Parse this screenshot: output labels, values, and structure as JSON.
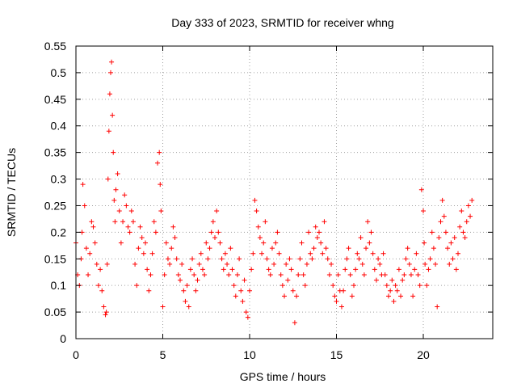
{
  "chart_data": {
    "type": "scatter",
    "title": "Day 333 of 2023, SRMTID for receiver whng",
    "xlabel": "GPS time / hours",
    "ylabel": "SRMTID / TECUs",
    "xlim": [
      0,
      24
    ],
    "ylim": [
      0,
      0.55
    ],
    "xticks": [
      0,
      5,
      10,
      15,
      20
    ],
    "xtick_labels": [
      "0",
      "5",
      "10",
      "15",
      "20"
    ],
    "yticks": [
      0,
      0.05,
      0.1,
      0.15,
      0.2,
      0.25,
      0.3,
      0.35,
      0.4,
      0.45,
      0.5,
      0.55
    ],
    "ytick_labels": [
      "0",
      "0.05",
      "0.1",
      "0.15",
      "0.2",
      "0.25",
      "0.3",
      "0.35",
      "0.4",
      "0.45",
      "0.5",
      "0.55"
    ],
    "grid": true,
    "marker": "+",
    "color": "#ff0000",
    "series": [
      {
        "name": "SRMTID",
        "x": [
          0.0,
          0.1,
          0.2,
          0.3,
          0.35,
          0.4,
          0.5,
          0.6,
          0.7,
          0.8,
          0.9,
          1.0,
          1.1,
          1.2,
          1.3,
          1.4,
          1.5,
          1.6,
          1.7,
          1.75,
          1.8,
          1.85,
          1.9,
          1.95,
          2.0,
          2.05,
          2.1,
          2.15,
          2.2,
          2.25,
          2.3,
          2.4,
          2.5,
          2.6,
          2.7,
          2.8,
          2.9,
          3.0,
          3.1,
          3.2,
          3.3,
          3.4,
          3.5,
          3.6,
          3.7,
          3.8,
          3.9,
          4.0,
          4.1,
          4.2,
          4.3,
          4.4,
          4.5,
          4.6,
          4.7,
          4.8,
          4.85,
          4.9,
          5.0,
          5.1,
          5.2,
          5.3,
          5.4,
          5.5,
          5.6,
          5.7,
          5.8,
          5.9,
          6.0,
          6.1,
          6.2,
          6.3,
          6.4,
          6.5,
          6.6,
          6.7,
          6.8,
          6.9,
          7.0,
          7.1,
          7.2,
          7.3,
          7.4,
          7.5,
          7.6,
          7.7,
          7.8,
          7.9,
          8.0,
          8.1,
          8.2,
          8.3,
          8.4,
          8.5,
          8.6,
          8.7,
          8.8,
          8.9,
          9.0,
          9.1,
          9.2,
          9.3,
          9.4,
          9.5,
          9.6,
          9.7,
          9.8,
          9.9,
          10.0,
          10.1,
          10.2,
          10.3,
          10.4,
          10.5,
          10.6,
          10.7,
          10.8,
          10.9,
          11.0,
          11.1,
          11.2,
          11.3,
          11.4,
          11.5,
          11.6,
          11.7,
          11.8,
          11.9,
          12.0,
          12.1,
          12.2,
          12.3,
          12.4,
          12.5,
          12.6,
          12.7,
          12.8,
          12.9,
          13.0,
          13.1,
          13.2,
          13.3,
          13.4,
          13.5,
          13.6,
          13.7,
          13.8,
          13.9,
          14.0,
          14.1,
          14.2,
          14.3,
          14.4,
          14.5,
          14.6,
          14.7,
          14.8,
          14.9,
          15.0,
          15.1,
          15.2,
          15.3,
          15.4,
          15.5,
          15.6,
          15.7,
          15.8,
          15.9,
          16.0,
          16.1,
          16.2,
          16.3,
          16.4,
          16.5,
          16.6,
          16.7,
          16.8,
          16.9,
          17.0,
          17.1,
          17.2,
          17.3,
          17.4,
          17.5,
          17.6,
          17.7,
          17.8,
          17.9,
          18.0,
          18.1,
          18.2,
          18.3,
          18.4,
          18.5,
          18.6,
          18.7,
          18.8,
          18.9,
          19.0,
          19.1,
          19.2,
          19.3,
          19.4,
          19.5,
          19.6,
          19.7,
          19.8,
          19.9,
          20.0,
          20.05,
          20.1,
          20.2,
          20.3,
          20.4,
          20.5,
          20.6,
          20.7,
          20.8,
          20.9,
          21.0,
          21.1,
          21.2,
          21.3,
          21.4,
          21.5,
          21.6,
          21.7,
          21.8,
          21.9,
          22.0,
          22.1,
          22.2,
          22.3,
          22.4,
          22.5,
          22.6,
          22.7,
          22.8
        ],
        "y": [
          0.18,
          0.12,
          0.1,
          0.15,
          0.2,
          0.29,
          0.25,
          0.17,
          0.12,
          0.16,
          0.22,
          0.21,
          0.18,
          0.14,
          0.1,
          0.13,
          0.09,
          0.06,
          0.045,
          0.05,
          0.14,
          0.3,
          0.39,
          0.46,
          0.5,
          0.52,
          0.42,
          0.35,
          0.26,
          0.22,
          0.28,
          0.31,
          0.24,
          0.18,
          0.22,
          0.27,
          0.25,
          0.21,
          0.2,
          0.24,
          0.22,
          0.14,
          0.1,
          0.17,
          0.21,
          0.19,
          0.16,
          0.18,
          0.13,
          0.09,
          0.12,
          0.16,
          0.22,
          0.2,
          0.33,
          0.35,
          0.29,
          0.24,
          0.06,
          0.12,
          0.18,
          0.15,
          0.14,
          0.17,
          0.21,
          0.19,
          0.15,
          0.12,
          0.11,
          0.14,
          0.09,
          0.07,
          0.1,
          0.06,
          0.13,
          0.15,
          0.12,
          0.09,
          0.11,
          0.14,
          0.16,
          0.13,
          0.12,
          0.18,
          0.15,
          0.17,
          0.2,
          0.22,
          0.19,
          0.24,
          0.2,
          0.18,
          0.15,
          0.13,
          0.16,
          0.14,
          0.12,
          0.17,
          0.13,
          0.1,
          0.08,
          0.12,
          0.15,
          0.09,
          0.07,
          0.11,
          0.05,
          0.04,
          0.09,
          0.13,
          0.16,
          0.26,
          0.24,
          0.21,
          0.19,
          0.16,
          0.18,
          0.22,
          0.15,
          0.13,
          0.12,
          0.17,
          0.14,
          0.18,
          0.2,
          0.16,
          0.12,
          0.1,
          0.08,
          0.14,
          0.11,
          0.15,
          0.13,
          0.09,
          0.03,
          0.08,
          0.12,
          0.15,
          0.18,
          0.12,
          0.1,
          0.14,
          0.2,
          0.16,
          0.15,
          0.17,
          0.21,
          0.19,
          0.2,
          0.18,
          0.16,
          0.22,
          0.17,
          0.15,
          0.12,
          0.14,
          0.1,
          0.08,
          0.07,
          0.12,
          0.09,
          0.06,
          0.09,
          0.13,
          0.15,
          0.17,
          0.12,
          0.08,
          0.1,
          0.13,
          0.16,
          0.15,
          0.19,
          0.14,
          0.12,
          0.17,
          0.22,
          0.18,
          0.2,
          0.16,
          0.13,
          0.11,
          0.15,
          0.14,
          0.12,
          0.16,
          0.12,
          0.1,
          0.08,
          0.09,
          0.11,
          0.07,
          0.1,
          0.09,
          0.13,
          0.08,
          0.11,
          0.12,
          0.15,
          0.17,
          0.14,
          0.12,
          0.08,
          0.13,
          0.16,
          0.12,
          0.1,
          0.28,
          0.24,
          0.18,
          0.14,
          0.1,
          0.13,
          0.15,
          0.2,
          0.17,
          0.14,
          0.06,
          0.19,
          0.22,
          0.26,
          0.23,
          0.2,
          0.17,
          0.14,
          0.18,
          0.15,
          0.19,
          0.13,
          0.16,
          0.21,
          0.24,
          0.2,
          0.19,
          0.22,
          0.25,
          0.23,
          0.26
        ]
      }
    ]
  }
}
